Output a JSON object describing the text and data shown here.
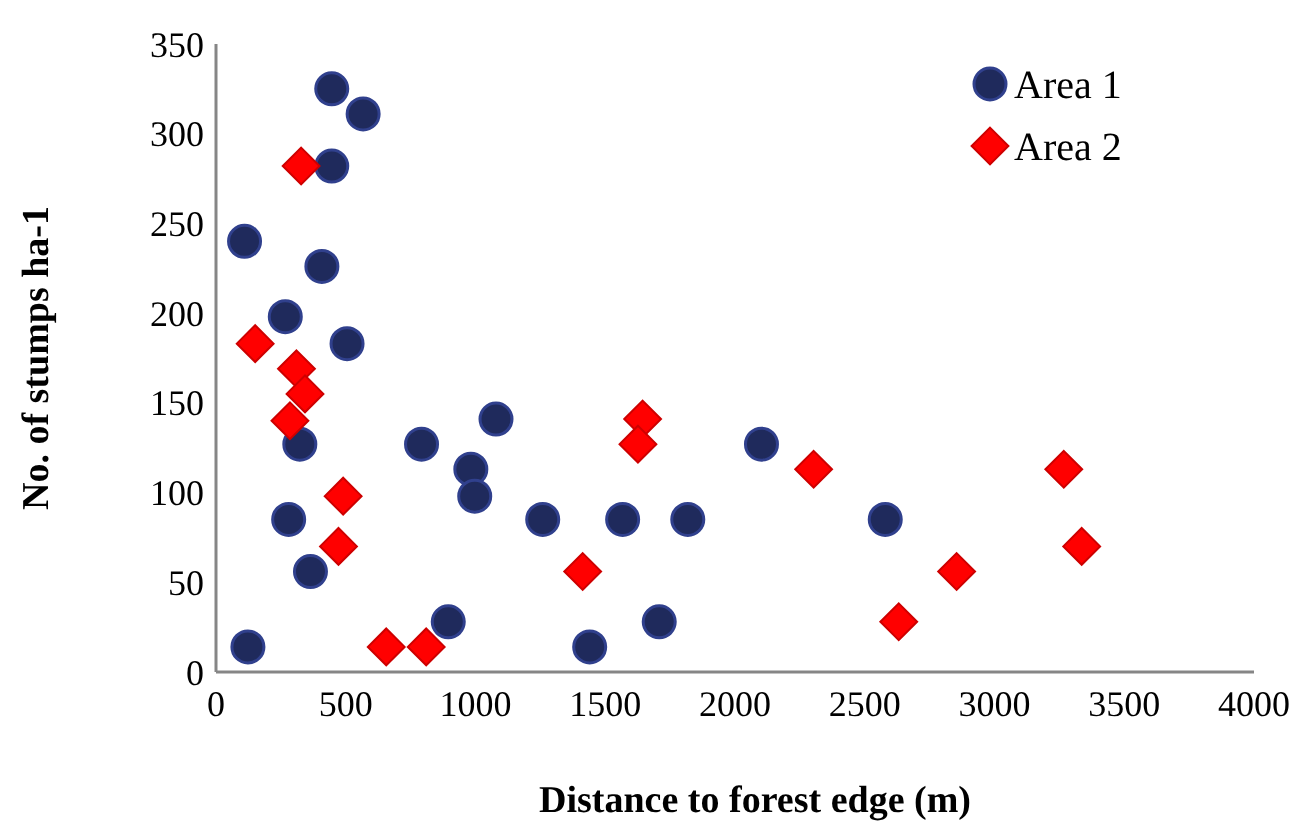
{
  "chart_data": {
    "type": "scatter",
    "xlabel": "Distance to forest edge (m)",
    "ylabel": "No. of stumps ha-1",
    "xlim": [
      0,
      4000
    ],
    "xticks": [
      0,
      500,
      1000,
      1500,
      2000,
      2500,
      3000,
      3500,
      4000
    ],
    "ylim": [
      0,
      350
    ],
    "yticks": [
      0,
      50,
      100,
      150,
      200,
      250,
      300,
      350
    ],
    "grid": false,
    "legend": "top right",
    "series": [
      {
        "name": "Area 1",
        "color": "#1f2a5c",
        "marker": "circle",
        "x": [
          446,
          567,
          446,
          110,
          408,
          267,
          505,
          323,
          792,
          1079,
          982,
          997,
          280,
          1259,
          364,
          895,
          123,
          1440,
          1708,
          1567,
          1818,
          2102,
          2579
        ],
        "values": [
          325,
          311,
          282,
          240,
          226,
          198,
          183,
          127,
          127,
          141,
          113,
          98,
          85,
          85,
          56,
          28,
          14,
          14,
          28,
          85,
          85,
          127,
          85
        ]
      },
      {
        "name": "Area 2",
        "color": "#ff0000",
        "marker": "diamond",
        "x": [
          328,
          151,
          310,
          343,
          285,
          490,
          472,
          656,
          810,
          1413,
          1644,
          1626,
          2303,
          2631,
          2854,
          3267,
          3336
        ],
        "values": [
          282,
          183,
          169,
          155,
          140,
          98,
          70,
          14,
          14,
          56,
          141,
          127,
          113,
          28,
          56,
          113,
          70
        ]
      }
    ]
  }
}
